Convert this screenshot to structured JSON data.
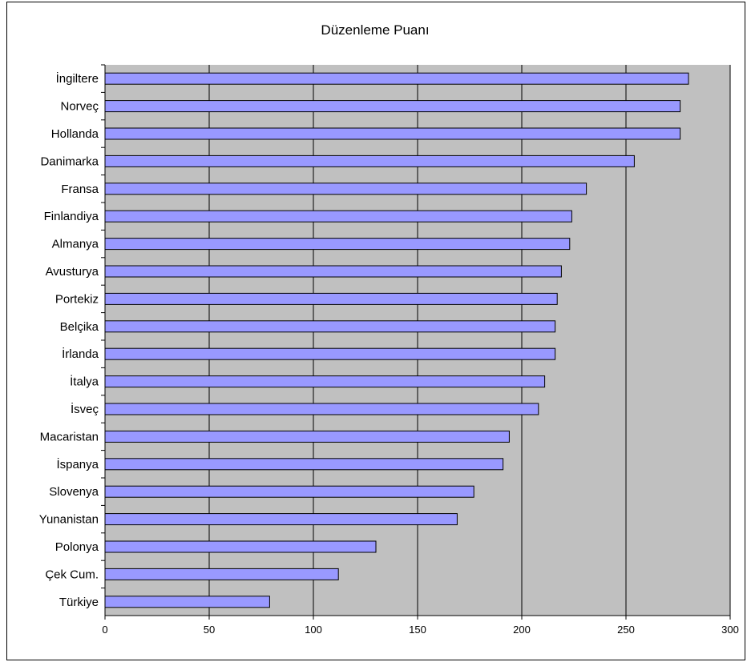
{
  "chart_data": {
    "type": "bar",
    "orientation": "horizontal",
    "title": "Düzenleme Puanı",
    "xlabel": "",
    "ylabel": "",
    "xlim": [
      0,
      300
    ],
    "xticks": [
      0,
      50,
      100,
      150,
      200,
      250,
      300
    ],
    "grid": true,
    "legend": "none",
    "categories": [
      "İngiltere",
      "Norveç",
      "Hollanda",
      "Danimarka",
      "Fransa",
      "Finlandiya",
      "Almanya",
      "Avusturya",
      "Portekiz",
      "Belçika",
      "İrlanda",
      "İtalya",
      "İsveç",
      "Macaristan",
      "İspanya",
      "Slovenya",
      "Yunanistan",
      "Polonya",
      "Çek Cum.",
      "Türkiye"
    ],
    "values": [
      280,
      276,
      276,
      254,
      231,
      224,
      223,
      219,
      217,
      216,
      216,
      211,
      208,
      194,
      191,
      177,
      169,
      130,
      112,
      79
    ],
    "colors": {
      "bar": "#9999ff",
      "plot_bg": "#c0c0c0",
      "grid": "#000000"
    }
  }
}
